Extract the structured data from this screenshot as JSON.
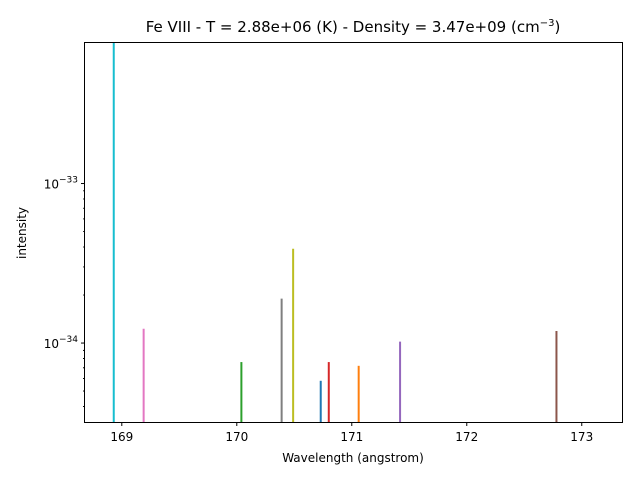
{
  "chart_data": {
    "type": "bar",
    "title": {
      "prefix": "Fe VIII -  T =   2.88e+06 (K) -  Density =   3.47e+09 (cm",
      "sup": "−3",
      "suffix": ")"
    },
    "xlabel": "Wavelength (angstrom)",
    "ylabel": "intensity",
    "xlim": [
      168.68,
      173.35
    ],
    "ylim": [
      3.2e-35,
      7.6e-33
    ],
    "yscale": "log",
    "xticks": [
      169,
      170,
      171,
      172,
      173
    ],
    "xtick_labels": [
      "169",
      "170",
      "171",
      "172",
      "173"
    ],
    "yticks": [
      {
        "value": 1e-34,
        "base": "10",
        "exp": "−34"
      },
      {
        "value": 1e-33,
        "base": "10",
        "exp": "−33"
      }
    ],
    "grid": false,
    "lines": [
      {
        "x": 168.93,
        "y": 7.6e-33,
        "color": "#17becf"
      },
      {
        "x": 169.19,
        "y": 1.23e-34,
        "color": "#e377c2"
      },
      {
        "x": 170.04,
        "y": 7.6e-35,
        "color": "#2ca02c"
      },
      {
        "x": 170.39,
        "y": 1.9e-34,
        "color": "#7f7f7f"
      },
      {
        "x": 170.49,
        "y": 3.9e-34,
        "color": "#bcbd22"
      },
      {
        "x": 170.73,
        "y": 5.8e-35,
        "color": "#1f77b4"
      },
      {
        "x": 170.8,
        "y": 7.6e-35,
        "color": "#d62728"
      },
      {
        "x": 171.06,
        "y": 7.2e-35,
        "color": "#ff7f0e"
      },
      {
        "x": 171.42,
        "y": 1.02e-34,
        "color": "#9467bd"
      },
      {
        "x": 172.78,
        "y": 1.19e-34,
        "color": "#8c564b"
      }
    ]
  }
}
